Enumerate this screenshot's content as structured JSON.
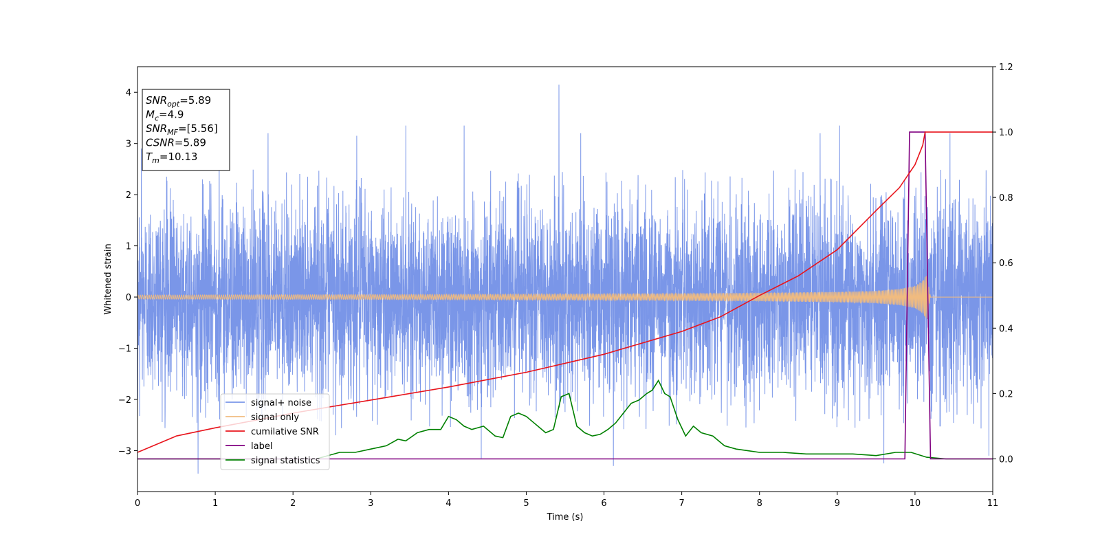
{
  "chart_data": {
    "type": "line",
    "title": "",
    "xlabel": "Time (s)",
    "ylabel": "Whitened strain",
    "y2label": "",
    "xlim": [
      0,
      11
    ],
    "ylim": [
      -3.8,
      4.5
    ],
    "y2lim": [
      -0.1,
      1.2
    ],
    "xticks": [
      0,
      1,
      2,
      3,
      4,
      5,
      6,
      7,
      8,
      9,
      10,
      11
    ],
    "yticks": [
      -3,
      -2,
      -1,
      0,
      1,
      2,
      3,
      4
    ],
    "y2ticks": [
      0.0,
      0.2,
      0.4,
      0.6,
      0.8,
      1.0,
      1.2
    ],
    "grid": false,
    "legend_position": "lower-left",
    "annotation": {
      "lines": [
        {
          "sym": "SNR",
          "sub": "opt",
          "val": "=5.89"
        },
        {
          "sym": "M",
          "sub": "c",
          "val": "=4.9"
        },
        {
          "sym": "SNR",
          "sub": "MF",
          "val": "=[5.56]"
        },
        {
          "sym": "CSNR",
          "sub": "",
          "val": "=5.89"
        },
        {
          "sym": "T",
          "sub": "m",
          "val": "=10.13"
        }
      ]
    },
    "series": [
      {
        "name": "signal+ noise",
        "axis": "left",
        "color": "#7a96e8",
        "description_values": {
          "typical_range": [
            -2.6,
            2.5
          ],
          "peaks": [
            {
              "x": 0.05,
              "y": 2.9
            },
            {
              "x": 0.78,
              "y": -3.45
            },
            {
              "x": 1.05,
              "y": 3.35
            },
            {
              "x": 1.68,
              "y": 3.2
            },
            {
              "x": 2.55,
              "y": -2.7
            },
            {
              "x": 2.82,
              "y": 3.15
            },
            {
              "x": 3.45,
              "y": 3.35
            },
            {
              "x": 4.2,
              "y": 3.35
            },
            {
              "x": 4.42,
              "y": -3.15
            },
            {
              "x": 5.42,
              "y": 4.15
            },
            {
              "x": 5.7,
              "y": 3.2
            },
            {
              "x": 6.12,
              "y": -3.3
            },
            {
              "x": 8.78,
              "y": 3.2
            },
            {
              "x": 9.03,
              "y": 3.35
            },
            {
              "x": 9.6,
              "y": -3.25
            },
            {
              "x": 10.45,
              "y": 3.2
            },
            {
              "x": 10.95,
              "y": -3.1
            }
          ]
        }
      },
      {
        "name": "signal only",
        "axis": "left",
        "color": "#f0bb80",
        "envelope": {
          "x": [
            0,
            2,
            4,
            6,
            7,
            8,
            9,
            9.5,
            9.8,
            10.0,
            10.1,
            10.15,
            10.2,
            11
          ],
          "amp": [
            0.04,
            0.045,
            0.05,
            0.06,
            0.07,
            0.08,
            0.1,
            0.12,
            0.16,
            0.22,
            0.32,
            0.45,
            0.0,
            0.0
          ]
        }
      },
      {
        "name": "cumilative SNR",
        "axis": "right",
        "color": "#e8141c",
        "x": [
          0,
          0.5,
          1,
          2,
          3,
          4,
          5,
          6,
          7,
          7.5,
          8,
          8.5,
          9,
          9.5,
          9.8,
          10.0,
          10.1,
          10.13,
          10.15,
          11
        ],
        "values": [
          0.02,
          0.07,
          0.095,
          0.14,
          0.18,
          0.22,
          0.265,
          0.32,
          0.39,
          0.435,
          0.5,
          0.56,
          0.64,
          0.76,
          0.83,
          0.9,
          0.96,
          1.0,
          1.0,
          1.0
        ]
      },
      {
        "name": "label",
        "axis": "right",
        "color": "#800080",
        "x": [
          0,
          9.87,
          9.93,
          10.13,
          10.2,
          11
        ],
        "values": [
          0.0,
          0.0,
          1.0,
          1.0,
          0.0,
          0.0
        ]
      },
      {
        "name": "signal statistics",
        "axis": "right",
        "color": "#008000",
        "x": [
          0,
          2.3,
          2.6,
          2.8,
          3.0,
          3.2,
          3.35,
          3.45,
          3.6,
          3.75,
          3.9,
          4.0,
          4.1,
          4.2,
          4.3,
          4.45,
          4.6,
          4.7,
          4.8,
          4.9,
          5.0,
          5.1,
          5.25,
          5.35,
          5.45,
          5.55,
          5.65,
          5.75,
          5.85,
          5.95,
          6.05,
          6.15,
          6.25,
          6.35,
          6.45,
          6.55,
          6.62,
          6.7,
          6.78,
          6.85,
          6.95,
          7.05,
          7.15,
          7.25,
          7.4,
          7.55,
          7.7,
          7.85,
          8.0,
          8.3,
          8.6,
          8.9,
          9.2,
          9.5,
          9.75,
          9.95,
          10.15,
          10.4,
          11
        ],
        "values": [
          0.0,
          0.0,
          0.02,
          0.02,
          0.03,
          0.04,
          0.06,
          0.055,
          0.08,
          0.09,
          0.09,
          0.13,
          0.12,
          0.1,
          0.09,
          0.1,
          0.07,
          0.065,
          0.13,
          0.14,
          0.13,
          0.11,
          0.08,
          0.09,
          0.19,
          0.2,
          0.1,
          0.08,
          0.07,
          0.075,
          0.09,
          0.11,
          0.14,
          0.17,
          0.18,
          0.2,
          0.21,
          0.24,
          0.2,
          0.19,
          0.12,
          0.07,
          0.1,
          0.08,
          0.07,
          0.04,
          0.03,
          0.025,
          0.02,
          0.02,
          0.015,
          0.015,
          0.015,
          0.01,
          0.02,
          0.02,
          0.005,
          0.0,
          0.0
        ]
      }
    ]
  }
}
